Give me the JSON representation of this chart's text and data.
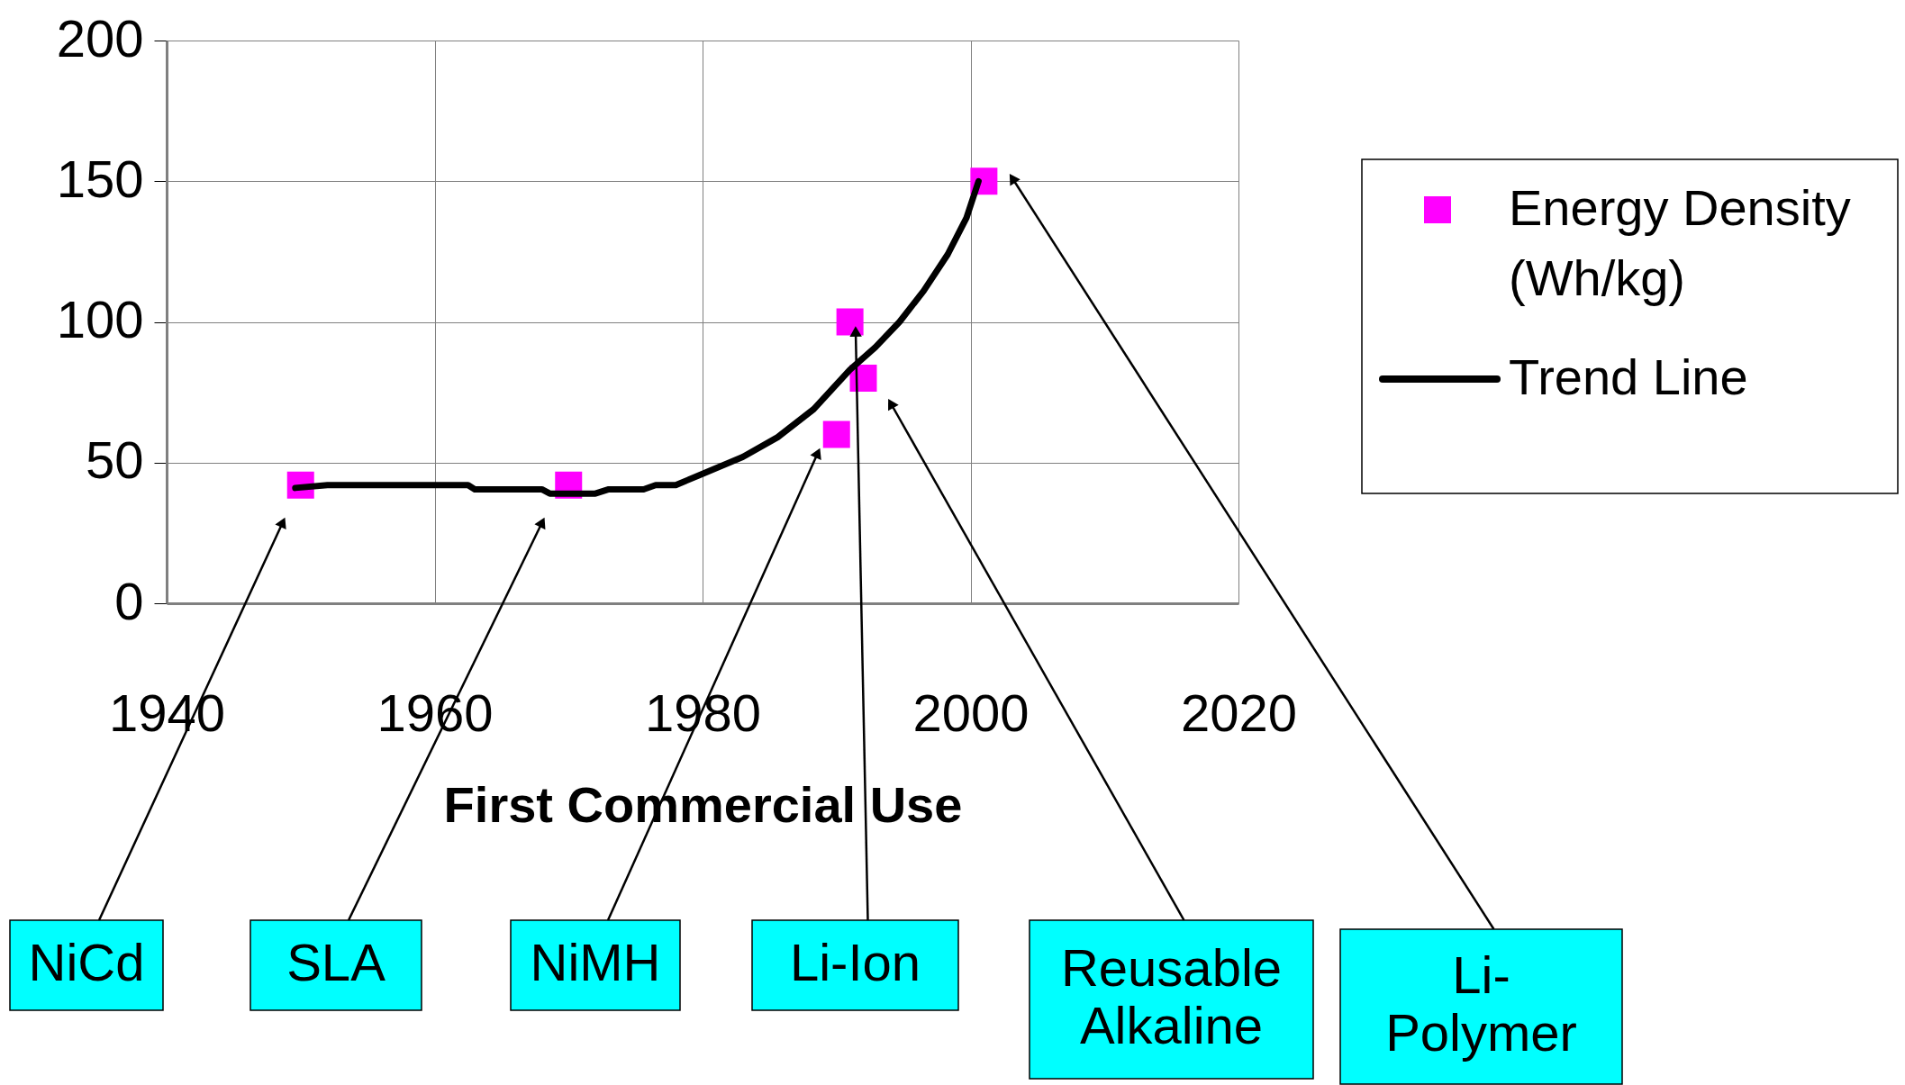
{
  "chart_data": {
    "type": "scatter",
    "xlabel": "First Commercial Use",
    "xlim": [
      1940,
      2020
    ],
    "xticks": [
      1940,
      1960,
      1980,
      2000,
      2020
    ],
    "ylim": [
      0,
      200
    ],
    "yticks": [
      0,
      50,
      100,
      150,
      200
    ],
    "grid": true,
    "legend": "right",
    "series": [
      {
        "name": "Energy Density (Wh/kg)",
        "marker": "square",
        "color": "#ff00ff",
        "x": [
          1950,
          1970,
          1990,
          1991,
          1992,
          2001
        ],
        "values": [
          42,
          42,
          60,
          100,
          80,
          150
        ]
      },
      {
        "name": "Trend Line",
        "type": "line",
        "color": "#000000",
        "line_style": "solid",
        "x": [
          1949.6,
          1952,
          1962.5,
          1963,
          1968,
          1968.6,
          1972,
          1973,
          1975.6,
          1976.5,
          1978,
          1980,
          1983,
          1985.6,
          1988.3,
          1991,
          1992.9,
          1994.7,
          1996.5,
          1998.3,
          1999.7,
          2000.6
        ],
        "values": [
          41,
          42,
          42,
          40.5,
          40.5,
          39,
          39,
          40.5,
          40.5,
          42,
          42,
          46,
          52,
          59,
          69,
          83,
          91,
          100,
          111,
          124,
          137,
          150
        ]
      }
    ],
    "annotations": [
      "NiCd",
      "SLA",
      "NiMH",
      "Li-Ion",
      "Reusable Alkaline",
      "Li-Polymer"
    ]
  }
}
